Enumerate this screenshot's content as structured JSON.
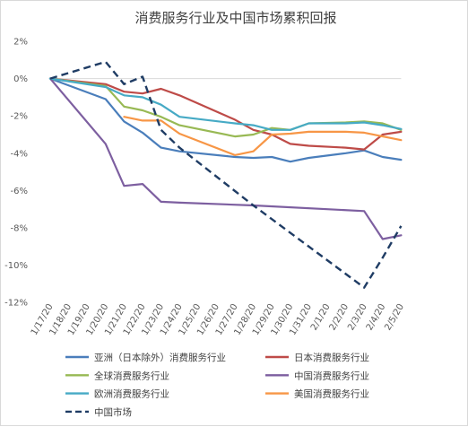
{
  "chart_data": {
    "type": "line",
    "title": "消费服务行业及中国市场累积回报",
    "xlabel": "",
    "ylabel": "",
    "categories": [
      "1/17/20",
      "1/18/20",
      "1/19/20",
      "1/20/20",
      "1/21/20",
      "1/22/20",
      "1/23/20",
      "1/24/20",
      "1/25/20",
      "1/26/20",
      "1/27/20",
      "1/28/20",
      "1/29/20",
      "1/30/20",
      "1/31/20",
      "2/1/20",
      "2/2/20",
      "2/3/20",
      "2/4/20",
      "2/5/20"
    ],
    "y_tick_labels": [
      "2%",
      "0%",
      "-2%",
      "-4%",
      "-6%",
      "-8%",
      "-10%",
      "-12%"
    ],
    "ylim": [
      -12,
      2
    ],
    "y_unit": "%",
    "grid": false,
    "legend_position": "bottom",
    "series": [
      {
        "name": "亚洲（日本除外）消费服务行业",
        "color": "#4a7ebb",
        "dash": false,
        "points": [
          [
            0,
            0
          ],
          [
            3,
            -1.1
          ],
          [
            4,
            -2.3
          ],
          [
            5,
            -2.9
          ],
          [
            6,
            -3.7
          ],
          [
            7,
            -3.9
          ],
          [
            10,
            -4.2
          ],
          [
            11,
            -4.25
          ],
          [
            12,
            -4.2
          ],
          [
            13,
            -4.45
          ],
          [
            14,
            -4.25
          ],
          [
            16,
            -4.0
          ],
          [
            17,
            -3.85
          ],
          [
            18,
            -4.2
          ],
          [
            19,
            -4.35
          ]
        ]
      },
      {
        "name": "日本消费服务行业",
        "color": "#be4b48",
        "dash": false,
        "points": [
          [
            0,
            0
          ],
          [
            3,
            -0.3
          ],
          [
            4,
            -0.7
          ],
          [
            5,
            -0.8
          ],
          [
            6,
            -0.55
          ],
          [
            7,
            -0.9
          ],
          [
            10,
            -2.2
          ],
          [
            11,
            -2.75
          ],
          [
            12,
            -3.0
          ],
          [
            13,
            -3.5
          ],
          [
            14,
            -3.6
          ],
          [
            16,
            -3.7
          ],
          [
            17,
            -3.8
          ],
          [
            18,
            -3.0
          ],
          [
            19,
            -2.85
          ]
        ]
      },
      {
        "name": "全球消费服务行业",
        "color": "#98b954",
        "dash": false,
        "points": [
          [
            0,
            0
          ],
          [
            3,
            -0.4
          ],
          [
            4,
            -1.5
          ],
          [
            5,
            -1.7
          ],
          [
            6,
            -2.05
          ],
          [
            7,
            -2.5
          ],
          [
            10,
            -3.1
          ],
          [
            11,
            -3.0
          ],
          [
            12,
            -2.65
          ],
          [
            13,
            -2.75
          ],
          [
            14,
            -2.4
          ],
          [
            16,
            -2.35
          ],
          [
            17,
            -2.3
          ],
          [
            18,
            -2.4
          ],
          [
            19,
            -2.75
          ]
        ]
      },
      {
        "name": "中国消费服务行业",
        "color": "#7d5fa0",
        "dash": false,
        "points": [
          [
            0,
            0
          ],
          [
            3,
            -3.5
          ],
          [
            4,
            -5.75
          ],
          [
            5,
            -5.65
          ],
          [
            6,
            -6.6
          ],
          [
            7,
            -6.65
          ],
          [
            11,
            -6.8
          ],
          [
            17,
            -7.1
          ],
          [
            18,
            -8.6
          ],
          [
            19,
            -8.4
          ]
        ]
      },
      {
        "name": "欧洲消费服务行业",
        "color": "#46aac5",
        "dash": false,
        "points": [
          [
            0,
            0
          ],
          [
            3,
            -0.45
          ],
          [
            4,
            -0.9
          ],
          [
            5,
            -1.0
          ],
          [
            6,
            -1.4
          ],
          [
            7,
            -2.05
          ],
          [
            10,
            -2.4
          ],
          [
            11,
            -2.5
          ],
          [
            12,
            -2.75
          ],
          [
            13,
            -2.75
          ],
          [
            14,
            -2.4
          ],
          [
            16,
            -2.4
          ],
          [
            17,
            -2.35
          ],
          [
            18,
            -2.5
          ],
          [
            19,
            -2.7
          ]
        ]
      },
      {
        "name": "美国消费服务行业",
        "color": "#f79646",
        "dash": false,
        "points": [
          [
            4,
            -2.05
          ],
          [
            5,
            -2.25
          ],
          [
            6,
            -2.25
          ],
          [
            7,
            -2.95
          ],
          [
            10,
            -4.1
          ],
          [
            11,
            -3.9
          ],
          [
            12,
            -3.0
          ],
          [
            13,
            -2.95
          ],
          [
            14,
            -2.85
          ],
          [
            16,
            -2.85
          ],
          [
            17,
            -2.9
          ],
          [
            18,
            -3.1
          ],
          [
            19,
            -3.3
          ]
        ]
      },
      {
        "name": "中国市场",
        "color": "#1f3c64",
        "dash": true,
        "points": [
          [
            0,
            0
          ],
          [
            3,
            0.9
          ],
          [
            4,
            -0.3
          ],
          [
            5,
            0.1
          ],
          [
            6,
            -2.75
          ],
          [
            7,
            -3.7
          ],
          [
            11,
            -6.8
          ],
          [
            17,
            -11.2
          ],
          [
            18,
            -9.6
          ],
          [
            19,
            -7.9
          ]
        ]
      }
    ]
  }
}
